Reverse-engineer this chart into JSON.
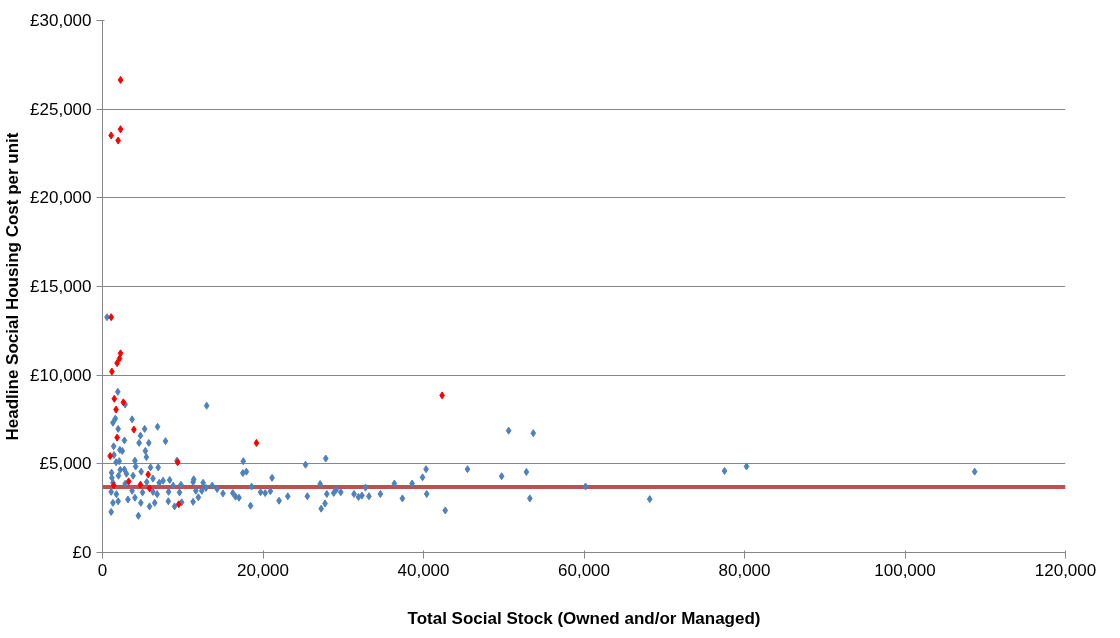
{
  "chart_data": {
    "type": "scatter",
    "xlabel": "Total Social Stock (Owned and/or Managed)",
    "ylabel": "Headline Social Housing Cost per unit",
    "xlim": [
      0,
      120000
    ],
    "ylim": [
      0,
      30000
    ],
    "xticks": [
      0,
      {
        "value": 20000,
        "label": "20,000"
      },
      {
        "value": 40000,
        "label": "40,000"
      },
      {
        "value": 60000,
        "label": "60,000"
      },
      {
        "value": 80000,
        "label": "80,000"
      },
      {
        "value": 100000,
        "label": "100,000"
      },
      {
        "value": 120000,
        "label": "120,000"
      }
    ],
    "yticks": [
      {
        "value": 0,
        "label": "£0"
      },
      {
        "value": 5000,
        "label": "£5,000"
      },
      {
        "value": 10000,
        "label": "£10,000"
      },
      {
        "value": 15000,
        "label": "£15,000"
      },
      {
        "value": 20000,
        "label": "£20,000"
      },
      {
        "value": 25000,
        "label": "£25,000"
      },
      {
        "value": 30000,
        "label": "£30,000"
      }
    ],
    "grid": "y",
    "marker": "diamond",
    "ref_lines": [
      {
        "axis": "y",
        "value": 3700,
        "color": "#c0504d"
      }
    ],
    "series": [
      {
        "color": "#4f81bd",
        "x": [
          21130,
          25300,
          27820,
          27120,
          27250,
          27730,
          27950,
          25520,
          22000,
          23090,
          19700,
          20270,
          20920,
          28810,
          29120,
          29690,
          31340,
          31900,
          32330,
          32770,
          33200,
          34630,
          36370,
          37370,
          38580,
          39880,
          40320,
          40400,
          42710,
          45480,
          49740,
          50610,
          52820,
          53250,
          53680,
          60190,
          68190,
          77510,
          80250,
          108680,
          560,
          1910,
          2820,
          12980,
          1600,
          3690,
          1300,
          1950,
          5250,
          6860,
          4730,
          2730,
          4560,
          5770,
          7850,
          1390,
          5340,
          2170,
          2470,
          1430,
          5470,
          4040,
          9280,
          1690,
          2080,
          17540,
          4130,
          5990,
          6940,
          1130,
          2210,
          2730,
          4820,
          17490,
          17930,
          2990,
          1170,
          1990,
          3810,
          6290,
          7550,
          8370,
          11370,
          12540,
          1300,
          2820,
          5510,
          7070,
          8810,
          9770,
          11290,
          13670,
          14280,
          18580,
          1080,
          1730,
          3690,
          4990,
          6290,
          6810,
          8240,
          9600,
          11630,
          12370,
          12890,
          15010,
          16240,
          16580,
          17010,
          1300,
          1950,
          3170,
          4040,
          4780,
          5860,
          6510,
          8200,
          8980,
          9860,
          11290,
          11940,
          18450,
          1080,
          4470
        ],
        "values": [
          4210,
          4950,
          5300,
          3860,
          2470,
          2760,
          3300,
          3170,
          2920,
          3170,
          3400,
          3350,
          3460,
          3360,
          3540,
          3400,
          3300,
          3130,
          3210,
          3660,
          3170,
          3300,
          3890,
          3050,
          3890,
          4240,
          4700,
          3300,
          2370,
          4700,
          4300,
          6870,
          4540,
          3050,
          6730,
          3720,
          3010,
          4600,
          4850,
          4560,
          13270,
          9060,
          8350,
          8280,
          7550,
          7510,
          7320,
          6970,
          6970,
          7090,
          6590,
          6320,
          6180,
          6180,
          6280,
          5990,
          5730,
          5790,
          5730,
          5500,
          5380,
          5180,
          5180,
          5090,
          5150,
          5150,
          4850,
          4800,
          4800,
          4500,
          4660,
          4680,
          4560,
          4480,
          4560,
          4440,
          4210,
          4330,
          4330,
          4170,
          4050,
          4090,
          4130,
          3930,
          3930,
          3870,
          3970,
          3930,
          3770,
          3820,
          3970,
          3770,
          3580,
          3720,
          3420,
          3290,
          3480,
          3390,
          3420,
          3290,
          3420,
          3390,
          3480,
          3480,
          3640,
          3330,
          3350,
          3150,
          3090,
          2800,
          2890,
          2990,
          3090,
          2800,
          2600,
          2800,
          2890,
          2600,
          2830,
          2860,
          3110,
          2640,
          2290,
          2070
        ]
      },
      {
        "color": "#ff0000",
        "x": [
          42320,
          19180,
          2250,
          2250,
          1080,
          1950,
          1080,
          2250,
          2120,
          1820,
          1170,
          1470,
          2600,
          1690,
          3910,
          1820,
          950,
          9370,
          5690,
          1390,
          3260,
          4730,
          5860,
          9500
        ],
        "values": [
          8860,
          6180,
          26650,
          23870,
          23520,
          23230,
          13270,
          11230,
          10940,
          10680,
          10200,
          8670,
          8470,
          8060,
          6930,
          6480,
          5440,
          5090,
          4400,
          3780,
          4010,
          3820,
          3620,
          2720
        ]
      }
    ]
  }
}
